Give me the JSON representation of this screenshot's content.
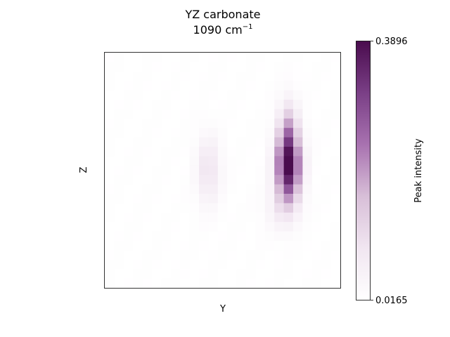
{
  "chart_data": {
    "type": "heatmap",
    "title_line1": "YZ carbonate",
    "title_line2_value": "1090 cm",
    "title_line2_sup": "−1",
    "xlabel": "Y",
    "ylabel": "Z",
    "colorbar": {
      "label": "Peak intensity",
      "min": 0.0165,
      "max": 0.3896,
      "tick_min_label": "0.0165",
      "tick_max_label": "0.3896",
      "colormap_stops": [
        "#ffffff",
        "#f1e6f1",
        "#d8bfd8",
        "#a872b0",
        "#7a3f86",
        "#4a0c4e"
      ]
    },
    "grid": false,
    "nx": 25,
    "ny": 25,
    "blobs": [
      {
        "cx": 19.0,
        "cy": 11.6,
        "sx": 0.9,
        "sy": 2.6,
        "amp": 0.37
      },
      {
        "cx": 19.0,
        "cy": 7.5,
        "sx": 0.7,
        "sy": 2.2,
        "amp": 0.1
      },
      {
        "cx": 10.5,
        "cy": 12.0,
        "sx": 0.9,
        "sy": 2.5,
        "amp": 0.075
      },
      {
        "cx": 18.2,
        "cy": 16.0,
        "sx": 1.2,
        "sy": 1.8,
        "amp": 0.04
      }
    ]
  }
}
